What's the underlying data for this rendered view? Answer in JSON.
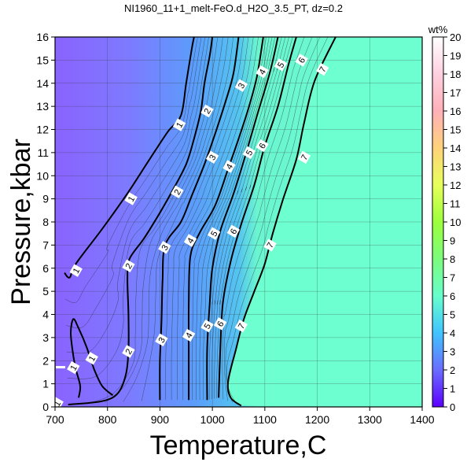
{
  "chart_data": {
    "type": "heatmap",
    "title": "NI1960_11+1_melt-FeO.d_H2O_3.5_PT, dz=0.2",
    "xlabel": "Temperature,C",
    "ylabel": "Pressure,kbar",
    "xlim": [
      700,
      1400
    ],
    "ylim": [
      0,
      16
    ],
    "xticks": [
      "700",
      "800",
      "900",
      "1000",
      "1100",
      "1200",
      "1300",
      "1400"
    ],
    "yticks": [
      "0",
      "1",
      "2",
      "3",
      "4",
      "5",
      "6",
      "7",
      "8",
      "9",
      "10",
      "11",
      "12",
      "13",
      "14",
      "15",
      "16"
    ],
    "colorbar": {
      "label": "wt%",
      "range": [
        0,
        20
      ],
      "ticks": [
        "0",
        "1",
        "2",
        "3",
        "4",
        "5",
        "6",
        "7",
        "8",
        "9",
        "10",
        "11",
        "12",
        "13",
        "14",
        "15",
        "16",
        "17",
        "18",
        "19",
        "20"
      ],
      "colors": [
        {
          "value": 0,
          "color": "#5b00ff"
        },
        {
          "value": 2,
          "color": "#6a6cff"
        },
        {
          "value": 4,
          "color": "#40c4ff"
        },
        {
          "value": 6,
          "color": "#66ffcc"
        },
        {
          "value": 8,
          "color": "#7cfc7c"
        },
        {
          "value": 10,
          "color": "#9cff3c"
        },
        {
          "value": 12,
          "color": "#e7ff5a"
        },
        {
          "value": 14,
          "color": "#ffd27a"
        },
        {
          "value": 16,
          "color": "#ffb0b8"
        },
        {
          "value": 18,
          "color": "#ffd0e0"
        },
        {
          "value": 20,
          "color": "#ffffff"
        }
      ]
    },
    "grid": true,
    "contours": [
      {
        "level": "1",
        "points": [
          [
            718,
            5.8
          ],
          [
            728,
            5.6
          ],
          [
            740,
            6.2
          ],
          [
            790,
            7.7
          ],
          [
            840,
            9.3
          ],
          [
            880,
            10.7
          ],
          [
            915,
            11.9
          ],
          [
            940,
            12.6
          ],
          [
            950,
            14.0
          ],
          [
            960,
            15.4
          ],
          [
            965,
            16.0
          ]
        ]
      },
      {
        "level": "1",
        "points": [
          [
            745,
            0.4
          ],
          [
            748,
            0.9
          ],
          [
            740,
            1.6
          ],
          [
            735,
            2.2
          ],
          [
            730,
            3.2
          ],
          [
            735,
            3.8
          ],
          [
            745,
            3.4
          ],
          [
            760,
            2.6
          ],
          [
            775,
            1.6
          ],
          [
            790,
            0.9
          ],
          [
            810,
            0.5
          ]
        ]
      },
      {
        "level": "2",
        "points": [
          [
            725,
            0.1
          ],
          [
            790,
            0.25
          ],
          [
            820,
            0.6
          ],
          [
            835,
            1.4
          ],
          [
            840,
            2.5
          ],
          [
            840,
            4.0
          ],
          [
            838,
            5.6
          ],
          [
            842,
            6.4
          ],
          [
            870,
            7.3
          ],
          [
            900,
            8.4
          ],
          [
            925,
            9.4
          ],
          [
            950,
            10.5
          ],
          [
            965,
            11.6
          ],
          [
            978,
            12.8
          ],
          [
            985,
            14.0
          ],
          [
            995,
            15.2
          ],
          [
            1000,
            16.0
          ]
        ]
      },
      {
        "level": "3",
        "points": [
          [
            900,
            0.3
          ],
          [
            900,
            2.0
          ],
          [
            903,
            3.7
          ],
          [
            905,
            5.5
          ],
          [
            910,
            7.0
          ],
          [
            940,
            8.0
          ],
          [
            960,
            9.1
          ],
          [
            985,
            10.5
          ],
          [
            1005,
            11.8
          ],
          [
            1025,
            13.2
          ],
          [
            1040,
            14.4
          ],
          [
            1050,
            16.0
          ]
        ]
      },
      {
        "level": "4",
        "points": [
          [
            955,
            0.3
          ],
          [
            955,
            2.5
          ],
          [
            955,
            4.5
          ],
          [
            958,
            6.5
          ],
          [
            975,
            7.5
          ],
          [
            1005,
            8.7
          ],
          [
            1030,
            10.3
          ],
          [
            1050,
            11.6
          ],
          [
            1070,
            13.0
          ],
          [
            1085,
            14.3
          ],
          [
            1097,
            16.0
          ]
        ]
      },
      {
        "level": "5",
        "points": [
          [
            990,
            0.3
          ],
          [
            990,
            2.5
          ],
          [
            995,
            4.5
          ],
          [
            1000,
            6.0
          ],
          [
            1015,
            7.6
          ],
          [
            1040,
            9.2
          ],
          [
            1062,
            10.8
          ],
          [
            1085,
            12.6
          ],
          [
            1110,
            14.5
          ],
          [
            1125,
            16.0
          ]
        ]
      },
      {
        "level": "6",
        "points": [
          [
            1012,
            0.4
          ],
          [
            1015,
            2.4
          ],
          [
            1020,
            4.5
          ],
          [
            1035,
            6.3
          ],
          [
            1055,
            7.9
          ],
          [
            1080,
            9.6
          ],
          [
            1100,
            11.3
          ],
          [
            1125,
            13.0
          ],
          [
            1145,
            14.8
          ],
          [
            1160,
            16.0
          ]
        ]
      },
      {
        "level": "7",
        "points": [
          [
            1055,
            0.05
          ],
          [
            1035,
            0.4
          ],
          [
            1030,
            1.1
          ],
          [
            1045,
            2.5
          ],
          [
            1060,
            3.8
          ],
          [
            1080,
            5.0
          ],
          [
            1100,
            6.2
          ],
          [
            1115,
            7.5
          ],
          [
            1135,
            9.0
          ],
          [
            1160,
            10.7
          ],
          [
            1175,
            12.3
          ],
          [
            1195,
            14.1
          ],
          [
            1235,
            16.0
          ]
        ]
      }
    ],
    "contour_labels": [
      {
        "text": "1",
        "x": 937,
        "y": 12.2
      },
      {
        "text": "1",
        "x": 845,
        "y": 9.0
      },
      {
        "text": "1",
        "x": 740,
        "y": 5.9
      },
      {
        "text": "1",
        "x": 770,
        "y": 2.1
      },
      {
        "text": "1",
        "x": 735,
        "y": 1.7
      },
      {
        "text": "1",
        "x": 704,
        "y": 0.15
      },
      {
        "text": "2",
        "x": 990,
        "y": 12.8
      },
      {
        "text": "2",
        "x": 933,
        "y": 9.3
      },
      {
        "text": "2",
        "x": 840,
        "y": 6.1
      },
      {
        "text": "2",
        "x": 840,
        "y": 2.4
      },
      {
        "text": "3",
        "x": 1055,
        "y": 13.9
      },
      {
        "text": "3",
        "x": 1000,
        "y": 10.8
      },
      {
        "text": "3",
        "x": 909,
        "y": 6.9
      },
      {
        "text": "3",
        "x": 903,
        "y": 2.9
      },
      {
        "text": "4",
        "x": 1095,
        "y": 14.5
      },
      {
        "text": "4",
        "x": 1032,
        "y": 10.4
      },
      {
        "text": "4",
        "x": 958,
        "y": 7.2
      },
      {
        "text": "4",
        "x": 955,
        "y": 3.1
      },
      {
        "text": "5",
        "x": 1130,
        "y": 14.8
      },
      {
        "text": "5",
        "x": 1070,
        "y": 11.0
      },
      {
        "text": "5",
        "x": 1003,
        "y": 7.5
      },
      {
        "text": "5",
        "x": 990,
        "y": 3.5
      },
      {
        "text": "6",
        "x": 1170,
        "y": 15.0
      },
      {
        "text": "6",
        "x": 1095,
        "y": 11.3
      },
      {
        "text": "6",
        "x": 1040,
        "y": 7.6
      },
      {
        "text": "6",
        "x": 1015,
        "y": 3.6
      },
      {
        "text": "7",
        "x": 1210,
        "y": 14.6
      },
      {
        "text": "7",
        "x": 1175,
        "y": 10.8
      },
      {
        "text": "7",
        "x": 1110,
        "y": 7.0
      },
      {
        "text": "7",
        "x": 1055,
        "y": 3.5
      }
    ],
    "legend_marker": {
      "text": "1",
      "x": 702,
      "y": 1.7
    }
  }
}
